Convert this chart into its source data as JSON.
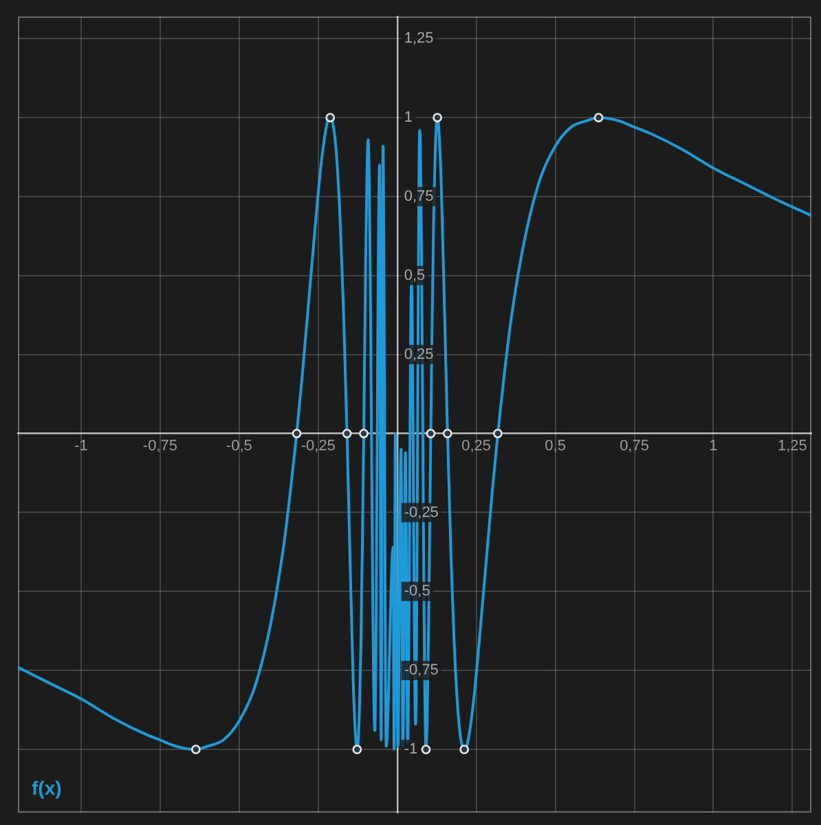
{
  "chart_data": {
    "type": "line",
    "xlim": [
      -1.2,
      1.31
    ],
    "ylim": [
      -1.2,
      1.32
    ],
    "xticks": [
      -1,
      {
        "value": -0.75,
        "label": "-0,75"
      },
      {
        "value": -0.5,
        "label": "-0,5"
      },
      {
        "value": -0.25,
        "label": "-0,25"
      },
      {
        "value": 0.25,
        "label": "0,25"
      },
      {
        "value": 0.5,
        "label": "0,5"
      },
      {
        "value": 0.75,
        "label": "0,75"
      },
      1,
      {
        "value": 1.25,
        "label": "1,25"
      }
    ],
    "yticks": [
      -1,
      {
        "value": -0.75,
        "label": "-0,75"
      },
      {
        "value": -0.5,
        "label": "-0,5"
      },
      {
        "value": -0.25,
        "label": "-0,25"
      },
      {
        "value": 0.25,
        "label": "0,25"
      },
      {
        "value": 0.5,
        "label": "0,5"
      },
      {
        "value": 0.75,
        "label": "0,75"
      },
      1,
      {
        "value": 1.25,
        "label": "1,25"
      }
    ],
    "grid": true,
    "legend": "bottom left",
    "series": [
      {
        "name": "f(x)",
        "type": "line",
        "marker": "none",
        "color": "#1f9ad8",
        "x": [
          -1.2,
          -1.1,
          -1.0,
          -0.9,
          -0.8,
          -0.75,
          -0.7,
          -0.637,
          -0.6,
          -0.55,
          -0.5,
          -0.45,
          -0.4,
          -0.36,
          -0.34,
          -0.318,
          -0.3,
          -0.28,
          -0.26,
          -0.24,
          -0.22,
          -0.212,
          -0.2,
          -0.19,
          -0.18,
          -0.17,
          -0.159,
          -0.15,
          -0.14,
          -0.135,
          -0.127,
          -0.12,
          -0.115,
          -0.11,
          -0.106,
          -0.1,
          -0.092,
          -0.071,
          -0.056,
          -0.051,
          -0.045,
          -0.035,
          -0.013,
          -0.01,
          -0.006,
          0.002,
          0.012,
          0.018,
          0.026,
          0.033,
          0.045,
          0.058,
          0.071,
          0.091,
          0.1,
          0.106,
          0.11,
          0.115,
          0.12,
          0.127,
          0.135,
          0.14,
          0.15,
          0.159,
          0.17,
          0.18,
          0.19,
          0.2,
          0.212,
          0.22,
          0.24,
          0.26,
          0.28,
          0.3,
          0.318,
          0.34,
          0.36,
          0.4,
          0.45,
          0.5,
          0.55,
          0.6,
          0.637,
          0.7,
          0.75,
          0.8,
          0.9,
          1.0,
          1.1,
          1.2,
          1.31
        ],
        "values": [
          -0.74,
          -0.79,
          -0.84,
          -0.9,
          -0.95,
          -0.97,
          -0.99,
          -1,
          -0.99,
          -0.97,
          -0.91,
          -0.8,
          -0.6,
          -0.36,
          -0.2,
          0,
          0.19,
          0.42,
          0.65,
          0.86,
          0.99,
          1,
          0.96,
          0.85,
          0.66,
          0.39,
          0,
          -0.37,
          -0.76,
          -0.9,
          -1,
          -0.89,
          -0.67,
          -0.33,
          0,
          0.54,
          0.93,
          -0.94,
          0.85,
          -0.97,
          0.91,
          -0.99,
          -0.36,
          -1,
          0,
          -0.99,
          -0.05,
          -0.99,
          -0.06,
          -0.98,
          0.48,
          -0.92,
          0.96,
          -1,
          -0.54,
          0,
          0.33,
          0.67,
          0.89,
          1,
          0.9,
          0.76,
          0.37,
          0,
          -0.39,
          -0.66,
          -0.85,
          -0.96,
          -1,
          -0.99,
          -0.86,
          -0.65,
          -0.42,
          -0.19,
          0,
          0.2,
          0.36,
          0.6,
          0.8,
          0.91,
          0.97,
          0.99,
          1,
          0.99,
          0.97,
          0.95,
          0.9,
          0.84,
          0.79,
          0.74,
          0.69
        ]
      },
      {
        "type": "scatter",
        "marker": "circle",
        "color": "#e8e8e8",
        "x": [
          -0.637,
          -0.318,
          -0.212,
          -0.159,
          -0.127,
          -0.106,
          0.091,
          0.106,
          0.127,
          0.159,
          0.212,
          0.318,
          0.637
        ],
        "values": [
          -1,
          0,
          1,
          0,
          -1,
          0,
          -1,
          0,
          1,
          0,
          -1,
          0,
          1
        ]
      }
    ]
  }
}
